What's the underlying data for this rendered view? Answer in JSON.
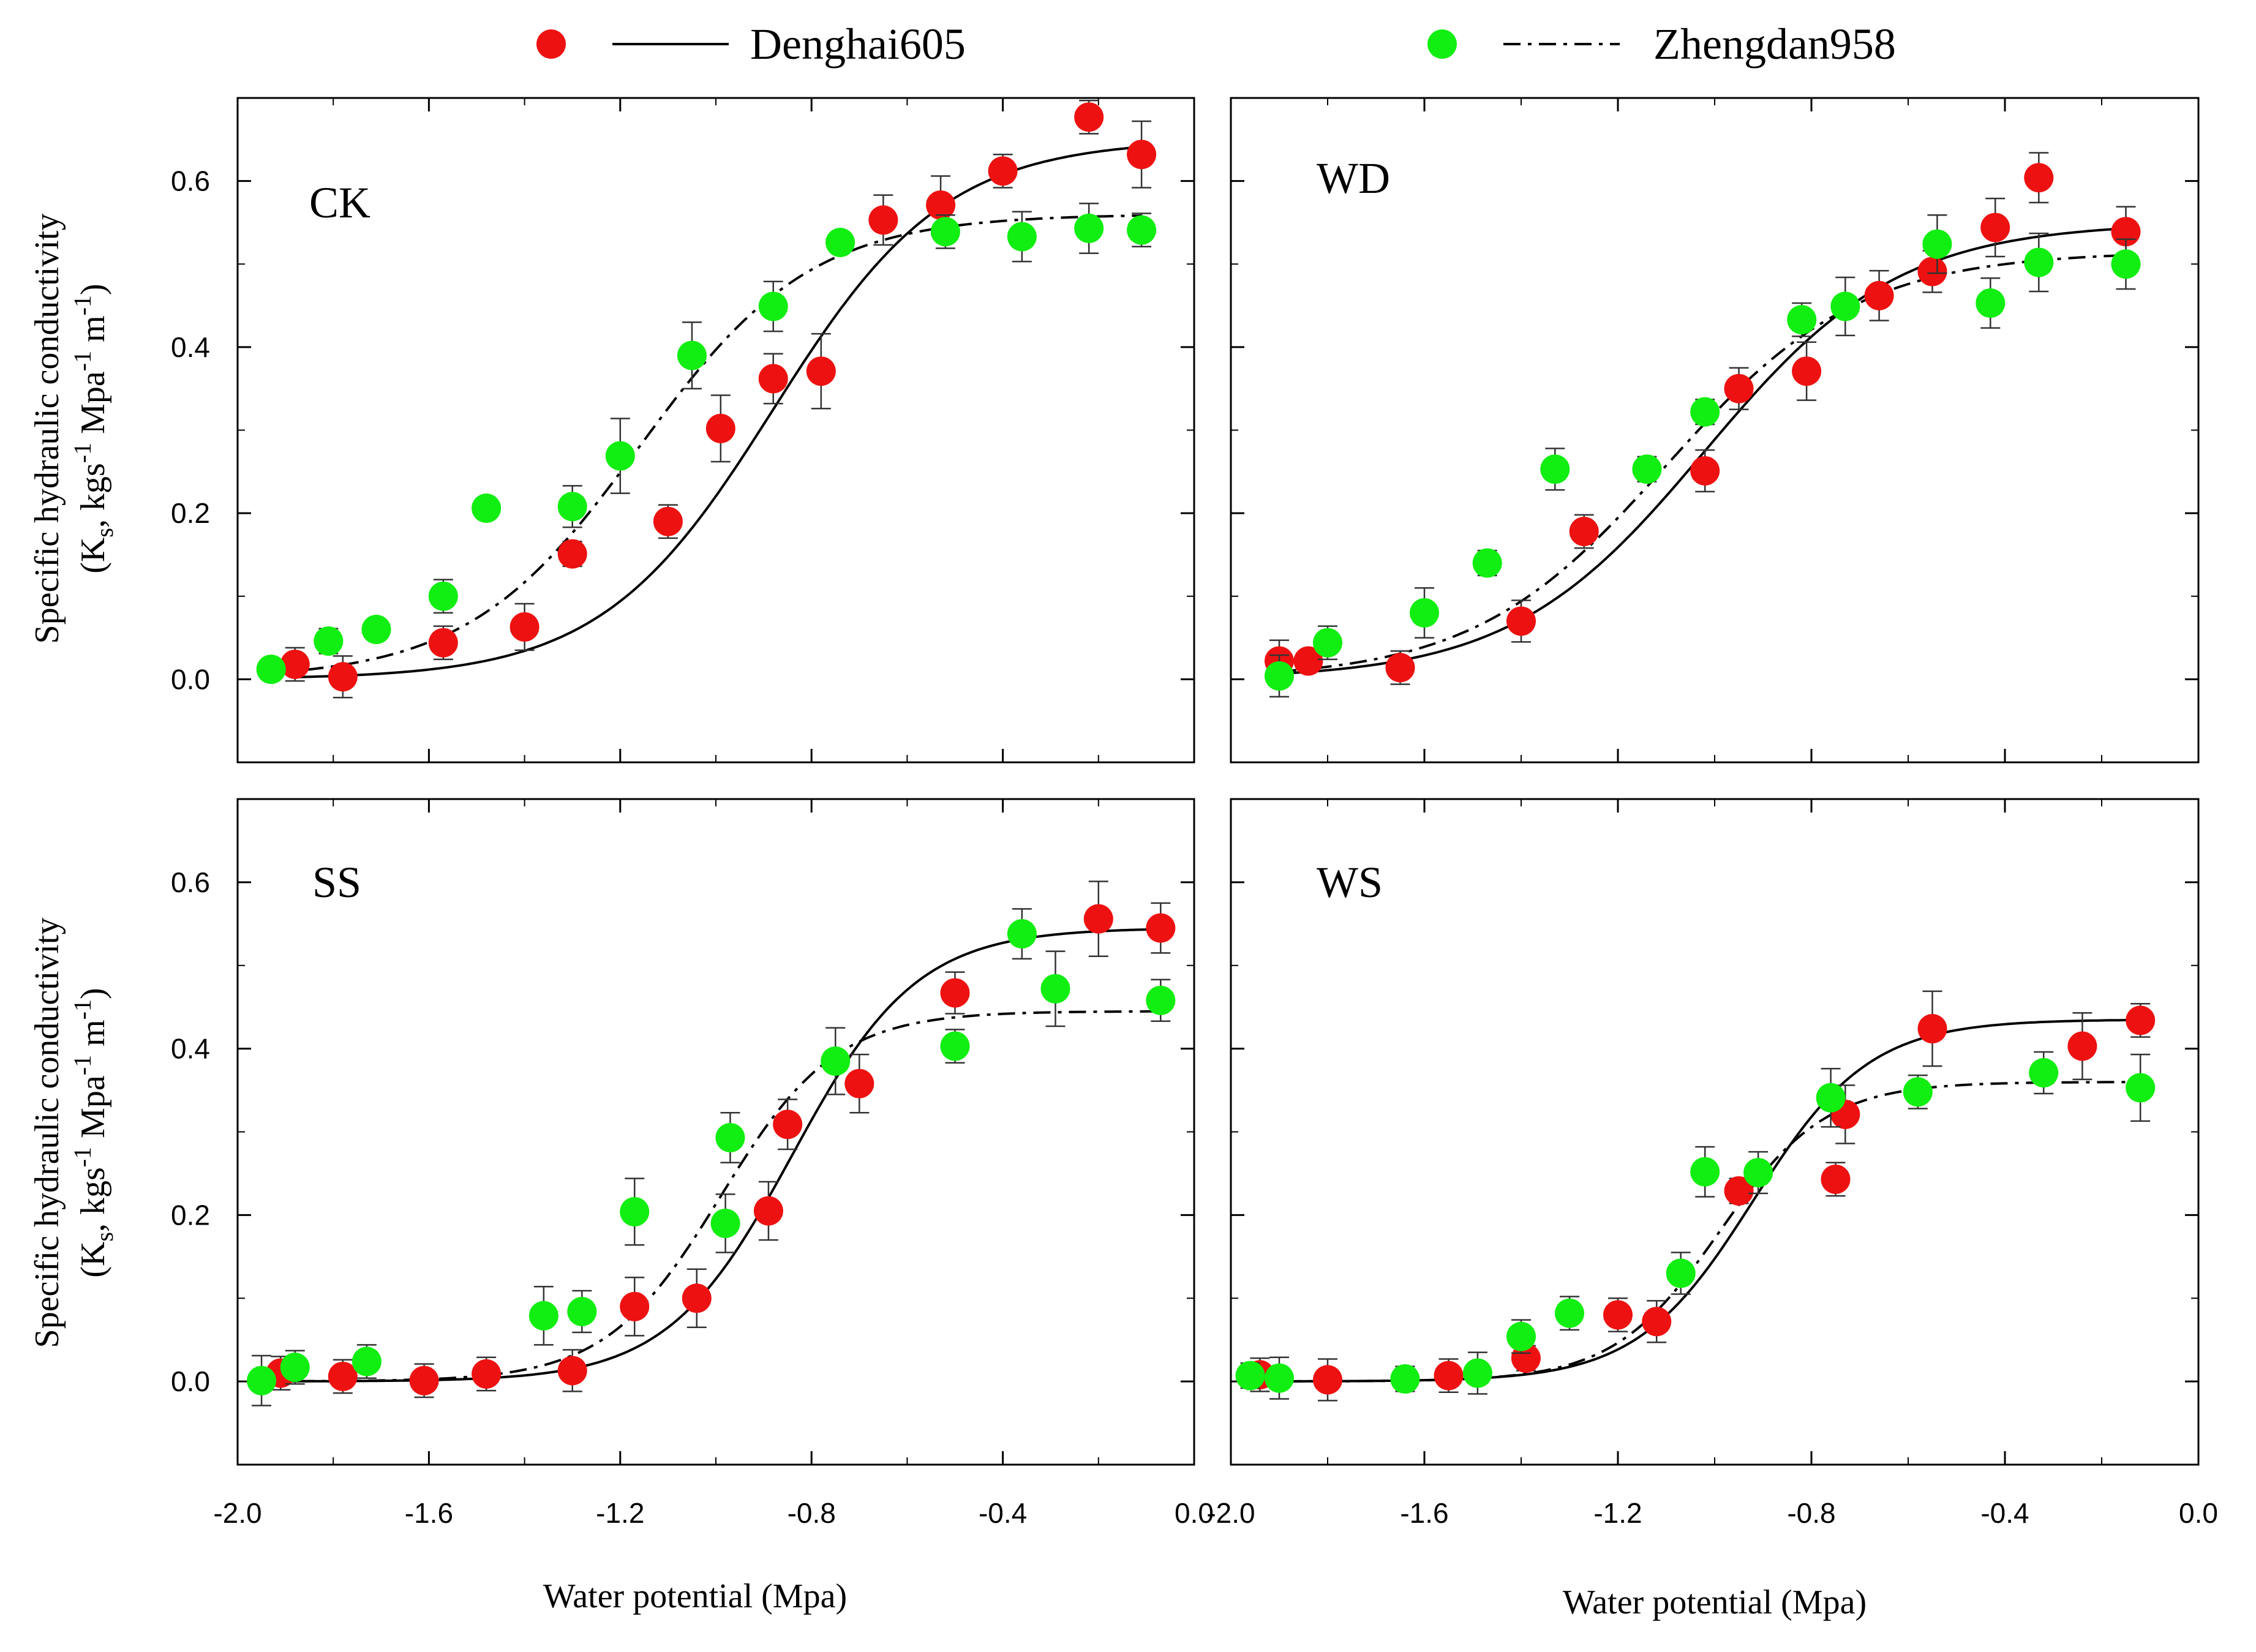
{
  "legend": {
    "series": [
      {
        "name": "Denghai605",
        "color": "#ee1111",
        "line": "solid"
      },
      {
        "name": "Zhengdan958",
        "color": "#11ee11",
        "line": "dashdot"
      }
    ]
  },
  "axes": {
    "xlabel": "Water potential (Mpa)",
    "ylabel_line1": "Specific hydraulic conductivity",
    "ylabel_line2": {
      "open": "(K",
      "sub_s": "s",
      "mid1": ", kgs",
      "sup1": "-1",
      "mid2": " Mpa",
      "sup2": "-1",
      "mid3": " m",
      "sup3": "-1",
      "close": ")"
    },
    "xlim": [
      -2.0,
      0.0
    ],
    "ylim": [
      -0.1,
      0.7
    ],
    "xticks": [
      "-2.0",
      "-1.6",
      "-1.2",
      "-0.8",
      "-0.4",
      "0.0"
    ],
    "xtick_values": [
      -2.0,
      -1.6,
      -1.2,
      -0.8,
      -0.4,
      0.0
    ],
    "yticks": [
      "0.0",
      "0.2",
      "0.4",
      "0.6"
    ],
    "ytick_values": [
      0.0,
      0.2,
      0.4,
      0.6
    ]
  },
  "chart_data": [
    {
      "type": "scatter",
      "panel": "CK",
      "series": [
        {
          "name": "Denghai605",
          "color": "#ee1111",
          "x": [
            -1.88,
            -1.78,
            -1.57,
            -1.4,
            -1.3,
            -1.1,
            -0.99,
            -0.88,
            -0.78,
            -0.65,
            -0.53,
            -0.4,
            -0.22,
            -0.11
          ],
          "y": [
            0.018,
            0.003,
            0.044,
            0.063,
            0.151,
            0.19,
            0.302,
            0.362,
            0.371,
            0.553,
            0.571,
            0.612,
            0.677,
            0.632
          ],
          "err": [
            0.02,
            0.025,
            0.02,
            0.028,
            0.015,
            0.02,
            0.04,
            0.03,
            0.045,
            0.03,
            0.035,
            0.02,
            0.02,
            0.04
          ],
          "fit": {
            "a": 0.65,
            "x0": -0.88,
            "b": 0.18
          }
        },
        {
          "name": "Zhengdan958",
          "color": "#11ee11",
          "x": [
            -1.93,
            -1.81,
            -1.71,
            -1.57,
            -1.48,
            -1.3,
            -1.2,
            -1.05,
            -0.88,
            -0.74,
            -0.52,
            -0.36,
            -0.22,
            -0.11
          ],
          "y": [
            0.012,
            0.046,
            0.06,
            0.1,
            0.206,
            0.208,
            0.269,
            0.39,
            0.449,
            0.526,
            0.539,
            0.533,
            0.543,
            0.541
          ],
          "err": [
            0.01,
            0.015,
            0.01,
            0.02,
            0.01,
            0.025,
            0.045,
            0.04,
            0.03,
            0.01,
            0.02,
            0.03,
            0.03,
            0.02
          ],
          "fit": {
            "a": 0.56,
            "x0": -1.16,
            "b": 0.18
          }
        }
      ]
    },
    {
      "type": "scatter",
      "panel": "WD",
      "series": [
        {
          "name": "Denghai605",
          "color": "#ee1111",
          "x": [
            -1.9,
            -1.84,
            -1.65,
            -1.4,
            -1.27,
            -1.02,
            -0.95,
            -0.81,
            -0.66,
            -0.55,
            -0.42,
            -0.33,
            -0.15
          ],
          "y": [
            0.022,
            0.022,
            0.014,
            0.07,
            0.178,
            0.251,
            0.35,
            0.371,
            0.462,
            0.491,
            0.544,
            0.604,
            0.539
          ],
          "err": [
            0.025,
            0.01,
            0.02,
            0.025,
            0.02,
            0.025,
            0.025,
            0.035,
            0.03,
            0.025,
            0.035,
            0.03,
            0.03
          ],
          "fit": {
            "a": 0.55,
            "x0": -1.02,
            "b": 0.2
          }
        },
        {
          "name": "Zhengdan958",
          "color": "#11ee11",
          "x": [
            -1.9,
            -1.8,
            -1.6,
            -1.47,
            -1.33,
            -1.14,
            -1.02,
            -0.82,
            -0.73,
            -0.54,
            -0.43,
            -0.33,
            -0.15
          ],
          "y": [
            0.004,
            0.044,
            0.08,
            0.14,
            0.253,
            0.253,
            0.322,
            0.433,
            0.449,
            0.524,
            0.453,
            0.502,
            0.5
          ],
          "err": [
            0.025,
            0.02,
            0.03,
            0.015,
            0.025,
            0.015,
            0.015,
            0.02,
            0.035,
            0.035,
            0.03,
            0.035,
            0.03
          ],
          "fit": {
            "a": 0.515,
            "x0": -1.1,
            "b": 0.2
          }
        }
      ]
    },
    {
      "type": "scatter",
      "panel": "SS",
      "series": [
        {
          "name": "Denghai605",
          "color": "#ee1111",
          "x": [
            -1.91,
            -1.78,
            -1.61,
            -1.48,
            -1.3,
            -1.17,
            -1.04,
            -0.89,
            -0.85,
            -0.7,
            -0.5,
            -0.2,
            -0.07
          ],
          "y": [
            0.01,
            0.006,
            0.001,
            0.009,
            0.013,
            0.09,
            0.1,
            0.205,
            0.309,
            0.358,
            0.467,
            0.556,
            0.545
          ],
          "err": [
            0.02,
            0.02,
            0.02,
            0.02,
            0.025,
            0.035,
            0.035,
            0.035,
            0.03,
            0.035,
            0.025,
            0.045,
            0.03
          ],
          "fit": {
            "a": 0.545,
            "x0": -0.84,
            "b": 0.13
          }
        },
        {
          "name": "Zhengdan958",
          "color": "#11ee11",
          "x": [
            -1.95,
            -1.88,
            -1.73,
            -1.36,
            -1.28,
            -1.17,
            -0.98,
            -0.97,
            -0.75,
            -0.5,
            -0.36,
            -0.29,
            -0.07
          ],
          "y": [
            0.001,
            0.017,
            0.024,
            0.079,
            0.084,
            0.204,
            0.19,
            0.293,
            0.385,
            0.403,
            0.538,
            0.472,
            0.458
          ],
          "err": [
            0.03,
            0.02,
            0.02,
            0.035,
            0.025,
            0.04,
            0.035,
            0.03,
            0.04,
            0.02,
            0.03,
            0.045,
            0.025
          ],
          "fit": {
            "a": 0.445,
            "x0": -0.99,
            "b": 0.12
          }
        }
      ]
    },
    {
      "type": "scatter",
      "panel": "WS",
      "series": [
        {
          "name": "Denghai605",
          "color": "#ee1111",
          "x": [
            -1.94,
            -1.8,
            -1.55,
            -1.39,
            -1.2,
            -1.12,
            -0.95,
            -0.75,
            -0.73,
            -0.55,
            -0.24,
            -0.12
          ],
          "y": [
            0.008,
            0.002,
            0.007,
            0.028,
            0.08,
            0.072,
            0.229,
            0.243,
            0.321,
            0.424,
            0.403,
            0.434
          ],
          "err": [
            0.02,
            0.025,
            0.02,
            0.015,
            0.02,
            0.025,
            0.015,
            0.02,
            0.035,
            0.045,
            0.04,
            0.02
          ],
          "fit": {
            "a": 0.435,
            "x0": -0.92,
            "b": 0.12
          }
        },
        {
          "name": "Zhengdan958",
          "color": "#11ee11",
          "x": [
            -1.96,
            -1.9,
            -1.64,
            -1.49,
            -1.4,
            -1.3,
            -1.07,
            -1.02,
            -0.91,
            -0.76,
            -0.58,
            -0.32,
            -0.12
          ],
          "y": [
            0.007,
            0.004,
            0.003,
            0.01,
            0.054,
            0.082,
            0.13,
            0.252,
            0.251,
            0.341,
            0.348,
            0.371,
            0.353
          ],
          "err": [
            0.015,
            0.025,
            0.015,
            0.025,
            0.02,
            0.02,
            0.025,
            0.03,
            0.025,
            0.035,
            0.02,
            0.025,
            0.04
          ],
          "fit": {
            "a": 0.36,
            "x0": -0.99,
            "b": 0.11
          }
        }
      ]
    }
  ]
}
